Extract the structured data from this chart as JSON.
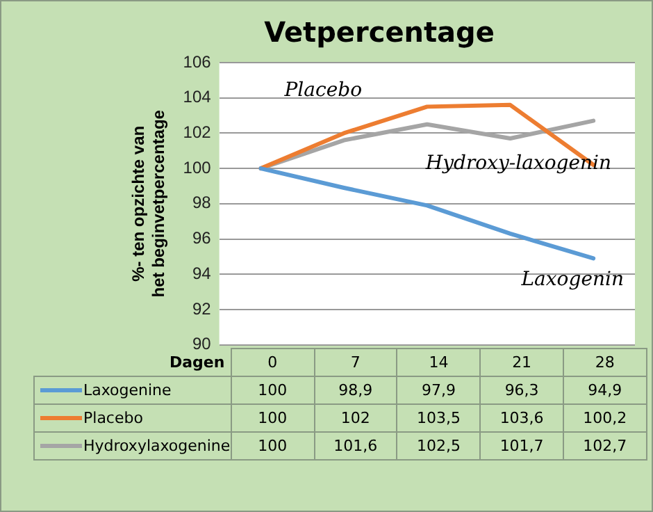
{
  "chart_data": {
    "type": "line",
    "title": "Vetpercentage",
    "xlabel": "Dagen",
    "ylabel": "%- ten opzichte van het beginvetpercentage",
    "categories": [
      "0",
      "7",
      "14",
      "21",
      "28"
    ],
    "series": [
      {
        "name": "Laxogenine",
        "color": "#5b9bd5",
        "values": [
          100,
          98.9,
          97.9,
          96.3,
          94.9
        ],
        "value_labels": [
          "100",
          "98,9",
          "97,9",
          "96,3",
          "94,9"
        ]
      },
      {
        "name": "Placebo",
        "color": "#ed7d31",
        "values": [
          100,
          102,
          103.5,
          103.6,
          100.2
        ],
        "value_labels": [
          "100",
          "102",
          "103,5",
          "103,6",
          "100,2"
        ]
      },
      {
        "name": "Hydroxylaxogenine",
        "color": "#a5a5a5",
        "values": [
          100,
          101.6,
          102.5,
          101.7,
          102.7
        ],
        "value_labels": [
          "100",
          "101,6",
          "102,5",
          "101,7",
          "102,7"
        ]
      }
    ],
    "ylim": [
      90,
      106
    ],
    "yticks": [
      90,
      92,
      94,
      96,
      98,
      100,
      102,
      104,
      106
    ],
    "grid": "y",
    "legend": "bottom",
    "marker": "none",
    "line_style": "solid",
    "annotations": [
      "Placebo",
      "Hydroxy-laxogenin",
      "Laxogenin"
    ]
  }
}
